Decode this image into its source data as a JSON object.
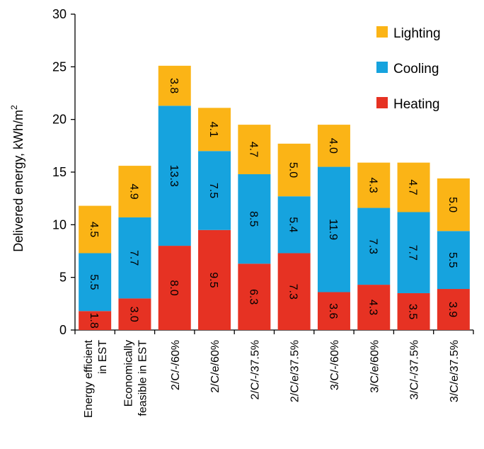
{
  "chart_data": {
    "type": "bar",
    "stacked": true,
    "title": "",
    "xlabel": "",
    "ylabel": "Delivered energy, kWh/m",
    "ylabel_superscript": "2",
    "ylim": [
      0,
      30
    ],
    "yticks": [
      "0",
      "5",
      "10",
      "15",
      "20",
      "25",
      "30"
    ],
    "grid": false,
    "legend_position": "top-right",
    "categories": [
      [
        "Energy efficient",
        "in EST"
      ],
      [
        "Economically",
        "feasible in EST"
      ],
      [
        "2/C/-/60%"
      ],
      [
        "2/C/e/60%"
      ],
      [
        "2/C/-/37.5%"
      ],
      [
        "2/C/e/37.5%"
      ],
      [
        "3/C/-/60%"
      ],
      [
        "3/C/e/60%"
      ],
      [
        "3/C/-/37.5%"
      ],
      [
        "3/C/e/37.5%"
      ]
    ],
    "series": [
      {
        "name": "Heating",
        "color": "#e63223",
        "values": [
          1.8,
          3.0,
          8.0,
          9.5,
          6.3,
          7.3,
          3.6,
          4.3,
          3.5,
          3.9
        ],
        "labels": [
          "1.8",
          "3.0",
          "8.0",
          "9.5",
          "6.3",
          "7.3",
          "3.6",
          "4.3",
          "3.5",
          "3.9"
        ]
      },
      {
        "name": "Cooling",
        "color": "#16a3de",
        "values": [
          5.5,
          7.7,
          13.3,
          7.5,
          8.5,
          5.4,
          11.9,
          7.3,
          7.7,
          5.5
        ],
        "labels": [
          "5.5",
          "7.7",
          "13.3",
          "7.5",
          "8.5",
          "5.4",
          "11.9",
          "7.3",
          "7.7",
          "5.5"
        ]
      },
      {
        "name": "Lighting",
        "color": "#fbb416",
        "values": [
          4.5,
          4.9,
          3.8,
          4.1,
          4.7,
          5.0,
          4.0,
          4.3,
          4.7,
          5.0
        ],
        "labels": [
          "4.5",
          "4.9",
          "3.8",
          "4.1",
          "4.7",
          "5.0",
          "4.0",
          "4.3",
          "4.7",
          "5.0"
        ]
      }
    ],
    "legend_order": [
      "Lighting",
      "Cooling",
      "Heating"
    ]
  }
}
